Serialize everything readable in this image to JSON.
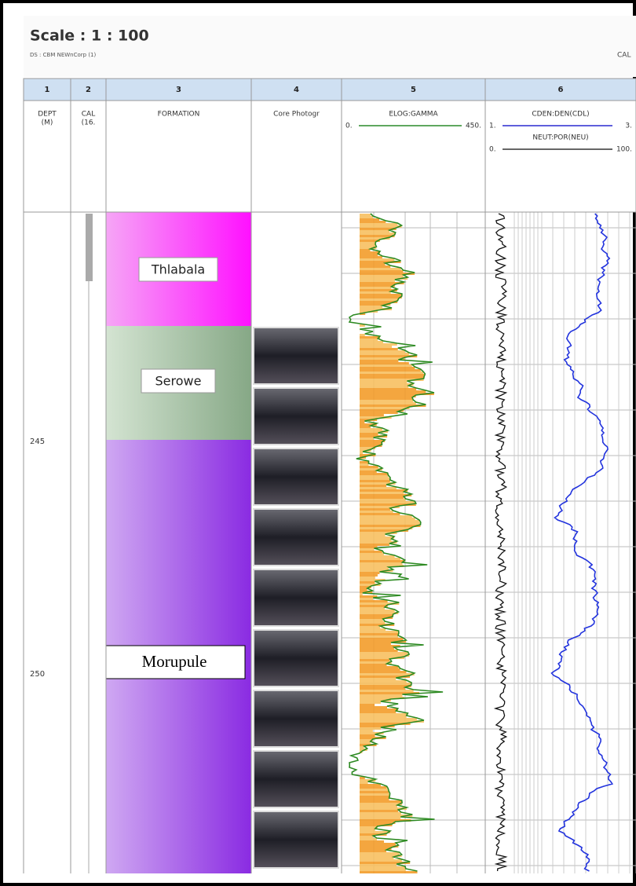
{
  "header": {
    "title": "Scale : 1 : 100",
    "subtitle": "DS : CBM NEWnCorp (1)",
    "right_label": "CAL"
  },
  "columns": [
    {
      "number": "1",
      "header": [
        "DEPT",
        "(M)"
      ]
    },
    {
      "number": "2",
      "header": [
        "CAL",
        "(16."
      ]
    },
    {
      "number": "3",
      "header": [
        "FORMATION"
      ]
    },
    {
      "number": "4",
      "header": [
        "Core Photogr"
      ]
    },
    {
      "number": "5",
      "header": [
        "ELOG:GAMMA"
      ],
      "scale": [
        "0.",
        "450."
      ]
    },
    {
      "number": "6",
      "header": [
        "CDEN:DEN(CDL)",
        "NEUT:POR(NEU)"
      ],
      "scale": [
        "1.",
        "3.",
        "0.",
        "100."
      ]
    }
  ],
  "formations": [
    {
      "name": "Thlabala"
    },
    {
      "name": "Serowe"
    },
    {
      "name": "Morupule"
    }
  ],
  "depths": [
    "245",
    "250"
  ]
}
